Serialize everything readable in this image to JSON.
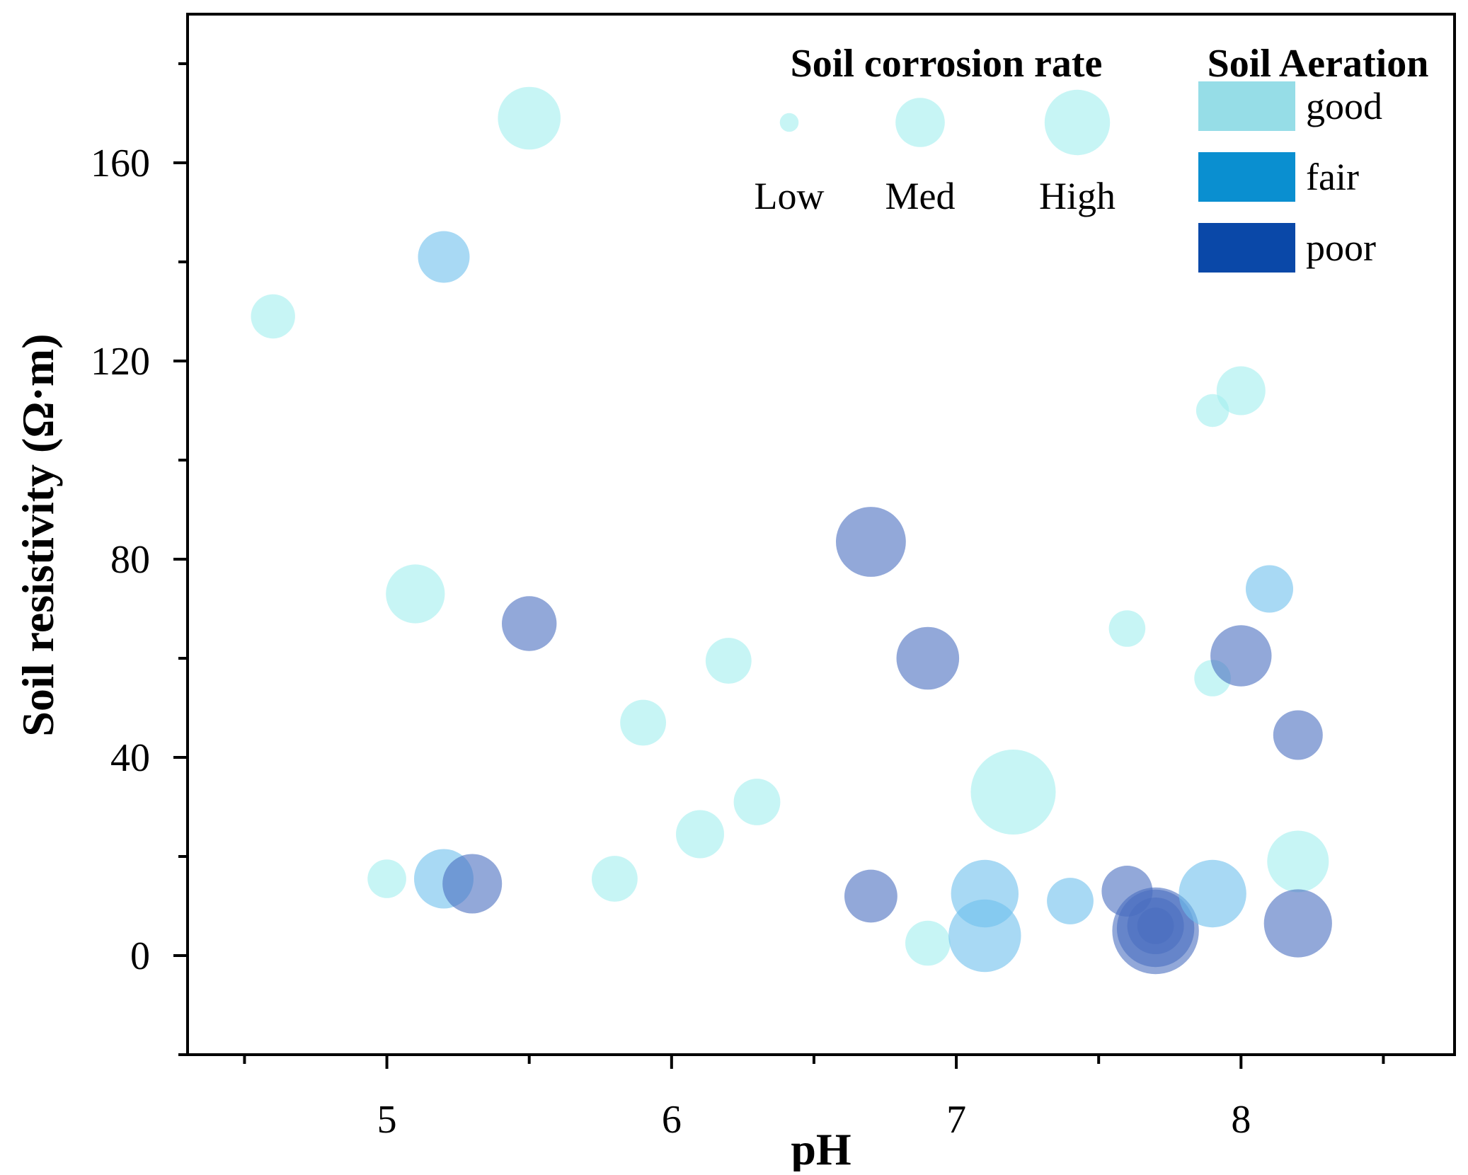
{
  "chart_data": {
    "type": "scatter",
    "subtype": "bubble",
    "title": "",
    "xlabel": "pH",
    "ylabel": "Soil resistivity (Ω·m)",
    "xlim": [
      4.3,
      8.75
    ],
    "ylim": [
      -20,
      190
    ],
    "x_ticks": [
      5,
      6,
      7,
      8
    ],
    "x_tick_labels": [
      "5",
      "6",
      "7",
      "8"
    ],
    "x_minor_ticks": [
      4.5,
      5.5,
      6.5,
      7.5,
      8.5
    ],
    "y_ticks": [
      0,
      40,
      80,
      120,
      160
    ],
    "y_tick_labels": [
      "0",
      "40",
      "80",
      "120",
      "160"
    ],
    "y_minor_ticks": [
      -20,
      20,
      60,
      100,
      140,
      180
    ],
    "grid": false,
    "size_legend": {
      "title": "Soil corrosion rate",
      "entries": [
        {
          "label": "Low",
          "rate": 0.08
        },
        {
          "label": "Med",
          "rate": 0.45
        },
        {
          "label": "High",
          "rate": 1.0
        }
      ]
    },
    "color_legend": {
      "title": "Soil Aeration",
      "entries": [
        {
          "label": "good",
          "key": "good",
          "color": "#96dde7"
        },
        {
          "label": "fair",
          "key": "fair",
          "color": "#0a8fd0"
        },
        {
          "label": "poor",
          "key": "poor",
          "color": "#0a48a8"
        }
      ]
    },
    "point_colors": {
      "good": "#a2eeee",
      "fair": "#6ec0ec",
      "poor": "#4a6ec0"
    },
    "point_opacity": 0.6,
    "points": [
      {
        "x": 4.6,
        "y": 129,
        "rate": 0.18,
        "aeration": "good"
      },
      {
        "x": 5.5,
        "y": 169,
        "rate": 0.47,
        "aeration": "good"
      },
      {
        "x": 5.2,
        "y": 141,
        "rate": 0.28,
        "aeration": "fair"
      },
      {
        "x": 5.1,
        "y": 73,
        "rate": 0.4,
        "aeration": "good"
      },
      {
        "x": 5.5,
        "y": 67,
        "rate": 0.33,
        "aeration": "poor"
      },
      {
        "x": 5.0,
        "y": 15.5,
        "rate": 0.12,
        "aeration": "good"
      },
      {
        "x": 5.2,
        "y": 15.5,
        "rate": 0.41,
        "aeration": "fair"
      },
      {
        "x": 5.3,
        "y": 14.5,
        "rate": 0.41,
        "aeration": "poor"
      },
      {
        "x": 5.8,
        "y": 15.5,
        "rate": 0.2,
        "aeration": "good"
      },
      {
        "x": 5.9,
        "y": 47,
        "rate": 0.2,
        "aeration": "good"
      },
      {
        "x": 6.1,
        "y": 24.5,
        "rate": 0.23,
        "aeration": "good"
      },
      {
        "x": 6.2,
        "y": 59.5,
        "rate": 0.2,
        "aeration": "good"
      },
      {
        "x": 6.3,
        "y": 31,
        "rate": 0.21,
        "aeration": "good"
      },
      {
        "x": 6.7,
        "y": 83.5,
        "rate": 0.62,
        "aeration": "poor"
      },
      {
        "x": 6.9,
        "y": 60,
        "rate": 0.47,
        "aeration": "poor"
      },
      {
        "x": 6.7,
        "y": 12,
        "rate": 0.3,
        "aeration": "poor"
      },
      {
        "x": 6.9,
        "y": 2.5,
        "rate": 0.19,
        "aeration": "good"
      },
      {
        "x": 7.1,
        "y": 12.5,
        "rate": 0.57,
        "aeration": "fair"
      },
      {
        "x": 7.1,
        "y": 4,
        "rate": 0.68,
        "aeration": "fair"
      },
      {
        "x": 7.2,
        "y": 33,
        "rate": 1.0,
        "aeration": "good"
      },
      {
        "x": 7.4,
        "y": 11,
        "rate": 0.21,
        "aeration": "fair"
      },
      {
        "x": 7.6,
        "y": 66,
        "rate": 0.1,
        "aeration": "good"
      },
      {
        "x": 7.6,
        "y": 13,
        "rate": 0.27,
        "aeration": "poor"
      },
      {
        "x": 7.7,
        "y": 5,
        "rate": 1.05,
        "aeration": "poor"
      },
      {
        "x": 7.7,
        "y": 5.5,
        "rate": 0.8,
        "aeration": "poor"
      },
      {
        "x": 7.7,
        "y": 6,
        "rate": 0.36,
        "aeration": "poor"
      },
      {
        "x": 7.7,
        "y": 6,
        "rate": 0.1,
        "aeration": "poor"
      },
      {
        "x": 7.9,
        "y": 110,
        "rate": 0.07,
        "aeration": "good"
      },
      {
        "x": 8.0,
        "y": 114,
        "rate": 0.24,
        "aeration": "good"
      },
      {
        "x": 7.9,
        "y": 56,
        "rate": 0.1,
        "aeration": "good"
      },
      {
        "x": 8.1,
        "y": 74,
        "rate": 0.22,
        "aeration": "fair"
      },
      {
        "x": 8.0,
        "y": 60.5,
        "rate": 0.44,
        "aeration": "poor"
      },
      {
        "x": 8.2,
        "y": 44.5,
        "rate": 0.25,
        "aeration": "poor"
      },
      {
        "x": 7.9,
        "y": 12.5,
        "rate": 0.57,
        "aeration": "fair"
      },
      {
        "x": 8.2,
        "y": 19,
        "rate": 0.45,
        "aeration": "good"
      },
      {
        "x": 8.2,
        "y": 6.5,
        "rate": 0.58,
        "aeration": "poor"
      }
    ]
  }
}
